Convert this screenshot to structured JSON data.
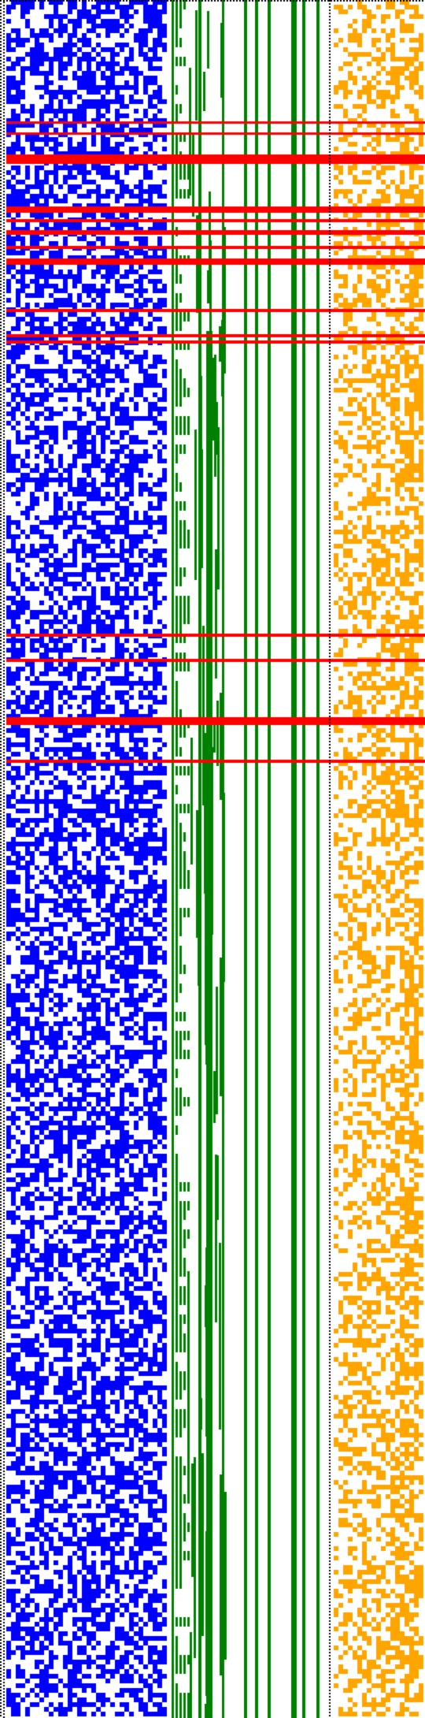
{
  "colors": {
    "background": "#ffffff",
    "blue_cells": "#0000ff",
    "green_stairs": "#008000",
    "orange_cells": "#ffa500",
    "red_rows": "#ff0000",
    "dotted_borders": "#000000"
  },
  "visual": {
    "pattern": "binary-cell-matrix",
    "blue_fill_fraction": 0.55,
    "orange_fill_fraction": 0.45,
    "icon_names": [
      "dotted-border-icon"
    ]
  }
}
